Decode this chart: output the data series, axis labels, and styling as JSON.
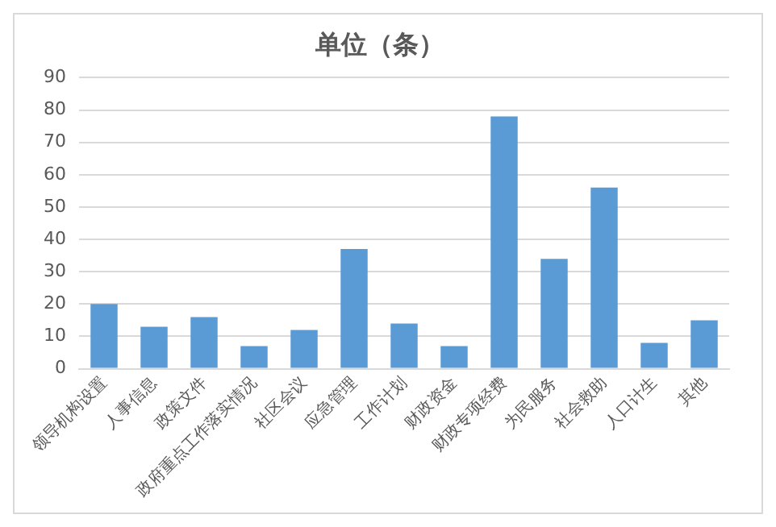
{
  "chart_data": {
    "type": "bar",
    "title": "单位（条）",
    "categories": [
      "领导机构设置",
      "人事信息",
      "政策文件",
      "政府重点工作落实情况",
      "社区会议",
      "应急管理",
      "工作计划",
      "财政资金",
      "财政专项经费",
      "为民服务",
      "社会救助",
      "人口计生",
      "其他"
    ],
    "values": [
      20,
      13,
      16,
      7,
      12,
      37,
      14,
      7,
      78,
      34,
      56,
      8,
      15
    ],
    "color": "#5b9bd5",
    "ylim": [
      0,
      90
    ],
    "yticks": [
      0,
      10,
      20,
      30,
      40,
      50,
      60,
      70,
      80,
      90
    ],
    "grid": "y",
    "legend": false
  }
}
